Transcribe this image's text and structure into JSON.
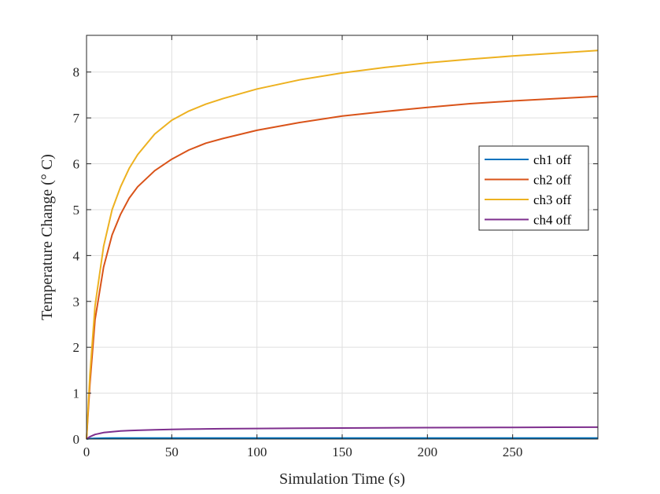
{
  "chart_data": {
    "type": "line",
    "xlabel": "Simulation Time (s)",
    "ylabel": "Temperature Change (° C)",
    "xlim": [
      0,
      300
    ],
    "ylim": [
      0,
      8.8
    ],
    "xticks": [
      0,
      50,
      100,
      150,
      200,
      250
    ],
    "yticks": [
      0,
      1,
      2,
      3,
      4,
      5,
      6,
      7,
      8
    ],
    "grid": true,
    "legend_position": "right",
    "x": [
      0,
      2,
      5,
      10,
      15,
      20,
      25,
      30,
      40,
      50,
      60,
      70,
      80,
      100,
      125,
      150,
      175,
      200,
      225,
      250,
      275,
      300
    ],
    "series": [
      {
        "name": "ch1 off",
        "color": "#0072BD",
        "values": [
          0,
          0.01,
          0.015,
          0.018,
          0.02,
          0.02,
          0.02,
          0.02,
          0.02,
          0.02,
          0.02,
          0.02,
          0.02,
          0.02,
          0.02,
          0.02,
          0.02,
          0.02,
          0.02,
          0.02,
          0.02,
          0.02
        ]
      },
      {
        "name": "ch2 off",
        "color": "#D95319",
        "values": [
          0,
          1.2,
          2.6,
          3.75,
          4.45,
          4.9,
          5.25,
          5.5,
          5.85,
          6.1,
          6.3,
          6.45,
          6.55,
          6.73,
          6.9,
          7.04,
          7.14,
          7.23,
          7.31,
          7.37,
          7.42,
          7.47
        ]
      },
      {
        "name": "ch3 off",
        "color": "#EDB120",
        "values": [
          0,
          1.4,
          2.9,
          4.2,
          5.0,
          5.5,
          5.9,
          6.2,
          6.65,
          6.95,
          7.15,
          7.3,
          7.42,
          7.63,
          7.83,
          7.98,
          8.1,
          8.2,
          8.28,
          8.35,
          8.41,
          8.47
        ]
      },
      {
        "name": "ch4 off",
        "color": "#7E2F8E",
        "values": [
          0,
          0.05,
          0.1,
          0.14,
          0.16,
          0.175,
          0.185,
          0.19,
          0.2,
          0.21,
          0.215,
          0.22,
          0.225,
          0.23,
          0.235,
          0.24,
          0.245,
          0.248,
          0.25,
          0.253,
          0.256,
          0.258
        ]
      }
    ]
  }
}
